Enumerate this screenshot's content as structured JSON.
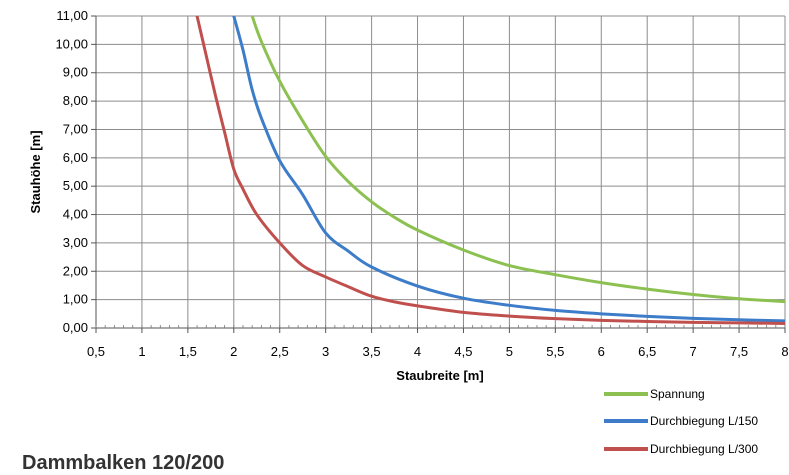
{
  "heading": "Dammbalken 120/200",
  "chart_data": {
    "type": "line",
    "xlabel": "Staubreite [m]",
    "ylabel": "Stauhöhe [m]",
    "xlim": [
      0.5,
      8
    ],
    "ylim": [
      0,
      11
    ],
    "x_ticks": [
      "0,5",
      "1",
      "1,5",
      "2",
      "2,5",
      "3",
      "3,5",
      "4",
      "4,5",
      "5",
      "5,5",
      "6",
      "6,5",
      "7",
      "7,5",
      "8"
    ],
    "y_ticks": [
      "0,00",
      "1,00",
      "2,00",
      "3,00",
      "4,00",
      "5,00",
      "6,00",
      "7,00",
      "8,00",
      "9,00",
      "10,00",
      "11,00"
    ],
    "grid": true,
    "legend_position": "bottom-right",
    "series": [
      {
        "name": "Spannung",
        "color": "#8cc152",
        "x": [
          2.2,
          2.3,
          2.5,
          2.75,
          3.0,
          3.25,
          3.5,
          3.75,
          4.0,
          4.5,
          5.0,
          5.5,
          6.0,
          6.5,
          7.0,
          7.5,
          8.0
        ],
        "y": [
          11.0,
          10.1,
          8.7,
          7.3,
          6.05,
          5.15,
          4.45,
          3.9,
          3.45,
          2.75,
          2.2,
          1.88,
          1.6,
          1.37,
          1.18,
          1.03,
          0.93
        ]
      },
      {
        "name": "Durchbiegung L/150",
        "color": "#3d7cc9",
        "x": [
          2.0,
          2.1,
          2.2,
          2.3,
          2.5,
          2.75,
          3.0,
          3.25,
          3.5,
          4.0,
          4.5,
          5.0,
          5.5,
          6.0,
          6.5,
          7.0,
          7.5,
          8.0
        ],
        "y": [
          11.0,
          9.8,
          8.4,
          7.4,
          5.9,
          4.7,
          3.35,
          2.7,
          2.15,
          1.48,
          1.05,
          0.8,
          0.62,
          0.5,
          0.41,
          0.34,
          0.29,
          0.25
        ]
      },
      {
        "name": "Durchbiegung L/300",
        "color": "#c0504d",
        "x": [
          1.6,
          1.7,
          1.8,
          1.9,
          2.0,
          2.1,
          2.25,
          2.5,
          2.75,
          3.0,
          3.25,
          3.5,
          3.75,
          4.0,
          4.5,
          5.0,
          5.5,
          6.0,
          6.5,
          7.0,
          7.5,
          8.0
        ],
        "y": [
          11.0,
          9.6,
          8.2,
          6.9,
          5.6,
          4.9,
          4.0,
          3.0,
          2.2,
          1.8,
          1.45,
          1.12,
          0.92,
          0.78,
          0.55,
          0.42,
          0.33,
          0.27,
          0.23,
          0.2,
          0.18,
          0.16
        ]
      }
    ]
  }
}
